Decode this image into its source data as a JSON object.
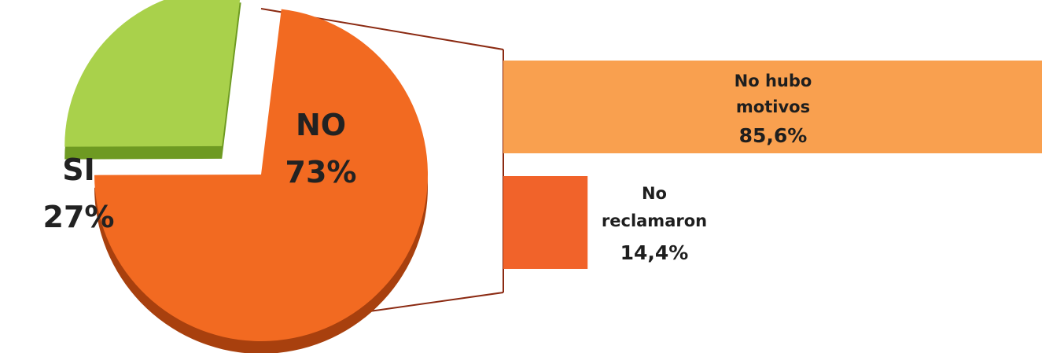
{
  "chart_data": {
    "type": "pie",
    "subtype": "bar-of-pie",
    "slices": [
      {
        "label": "NO",
        "value": 73,
        "value_label": "73%",
        "color": "#F26A21",
        "side_color": "#A8400E"
      },
      {
        "label": "SI",
        "value": 27,
        "value_label": "27%",
        "color": "#A9D14B",
        "side_color": "#6E9A22"
      }
    ],
    "breakdown_of": "NO",
    "breakdown": [
      {
        "label_lines": [
          "No hubo",
          "motivos"
        ],
        "value": 85.6,
        "value_label": "85,6%",
        "color": "#F9A04F"
      },
      {
        "label_lines": [
          "No",
          "reclamaron"
        ],
        "value": 14.4,
        "value_label": "14,4%",
        "color": "#F1632A"
      }
    ],
    "connector_color": "#8B2A12"
  }
}
